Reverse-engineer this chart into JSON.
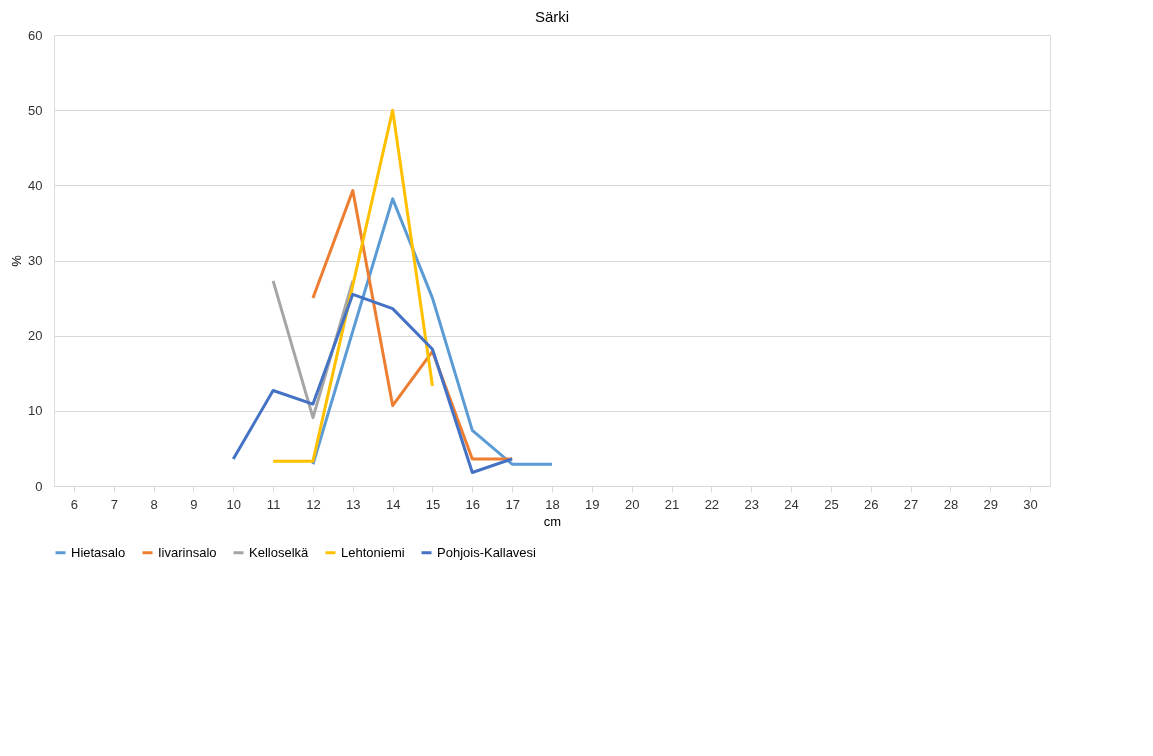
{
  "chart_data": {
    "type": "line",
    "title": "Särki",
    "xlabel": "cm",
    "ylabel": "%",
    "categories": [
      "6",
      "7",
      "8",
      "9",
      "10",
      "11",
      "12",
      "13",
      "14",
      "15",
      "16",
      "17",
      "18",
      "19",
      "20",
      "21",
      "22",
      "23",
      "24",
      "25",
      "26",
      "27",
      "28",
      "29",
      "30"
    ],
    "series": [
      {
        "name": "Hietasalo",
        "color": "#5b9bd5",
        "values": [
          null,
          null,
          null,
          null,
          null,
          null,
          2.9,
          20.6,
          38.2,
          25,
          7.4,
          2.9,
          2.9,
          null,
          null,
          null,
          null,
          null,
          null,
          null,
          null,
          null,
          null,
          null,
          null
        ]
      },
      {
        "name": "Iivarinsalo",
        "color": "#ed7d31",
        "values": [
          null,
          null,
          null,
          null,
          null,
          null,
          25,
          39.3,
          10.7,
          17.9,
          3.6,
          3.6,
          null,
          null,
          null,
          null,
          null,
          null,
          null,
          null,
          null,
          null,
          null,
          null,
          null
        ]
      },
      {
        "name": "Kelloselkä",
        "color": "#a5a5a5",
        "values": [
          null,
          null,
          null,
          null,
          null,
          27.3,
          9.1,
          27.3,
          null,
          null,
          null,
          null,
          null,
          null,
          null,
          null,
          null,
          null,
          null,
          null,
          null,
          null,
          null,
          null,
          null
        ]
      },
      {
        "name": "Lehtoniemi",
        "color": "#ffc000",
        "values": [
          null,
          null,
          null,
          null,
          null,
          3.3,
          3.3,
          26.7,
          50,
          13.3,
          null,
          null,
          null,
          null,
          null,
          null,
          null,
          null,
          null,
          null,
          null,
          null,
          null,
          null,
          null
        ]
      },
      {
        "name": "Pohjois-Kallavesi",
        "color": "#4472c4",
        "values": [
          null,
          null,
          null,
          null,
          3.6,
          12.7,
          10.9,
          25.5,
          23.6,
          18.2,
          1.8,
          3.6,
          null,
          null,
          null,
          null,
          null,
          null,
          null,
          null,
          null,
          null,
          null,
          null,
          null
        ]
      }
    ],
    "ylim": [
      0,
      60
    ],
    "yticks": [
      0,
      10,
      20,
      30,
      40,
      50,
      60
    ],
    "grid": "y",
    "legend": "bottom",
    "marker": "none",
    "line_style": "solid"
  }
}
